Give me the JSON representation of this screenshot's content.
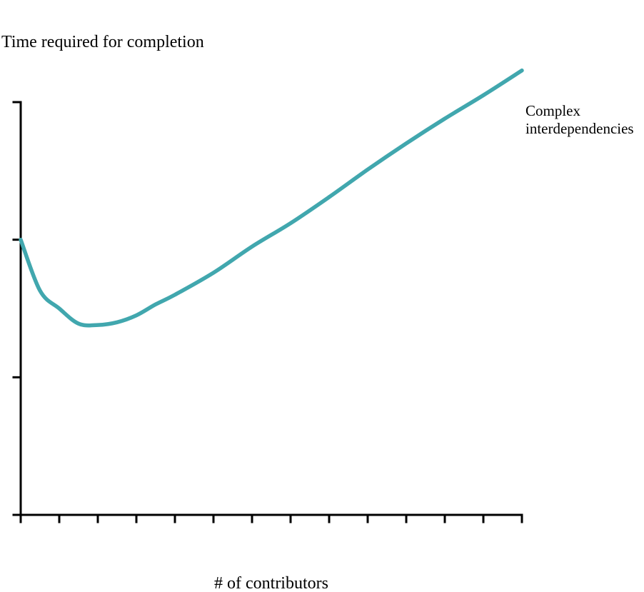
{
  "chart_data": {
    "type": "line",
    "title": "",
    "ylabel": "Time required for completion",
    "xlabel": "# of contributors",
    "xlim": [
      1,
      14
    ],
    "ylim": [
      0,
      3
    ],
    "x_ticks": [
      1,
      2,
      3,
      4,
      5,
      6,
      7,
      8,
      9,
      10,
      11,
      12,
      13,
      14
    ],
    "y_ticks": [
      0,
      1,
      2,
      3
    ],
    "tick_labels_visible": false,
    "grid": false,
    "legend": "none",
    "series": [
      {
        "name": "Complex interdependencies",
        "color": "#41a7ae",
        "x": [
          1,
          1.5,
          2,
          2.5,
          3,
          3.5,
          4,
          4.5,
          5,
          6,
          7,
          8,
          9,
          10,
          11,
          12,
          13,
          14
        ],
        "y": [
          2.0,
          1.63,
          1.5,
          1.39,
          1.38,
          1.4,
          1.45,
          1.53,
          1.6,
          1.76,
          1.95,
          2.12,
          2.31,
          2.51,
          2.7,
          2.88,
          3.05,
          3.23
        ]
      }
    ]
  }
}
